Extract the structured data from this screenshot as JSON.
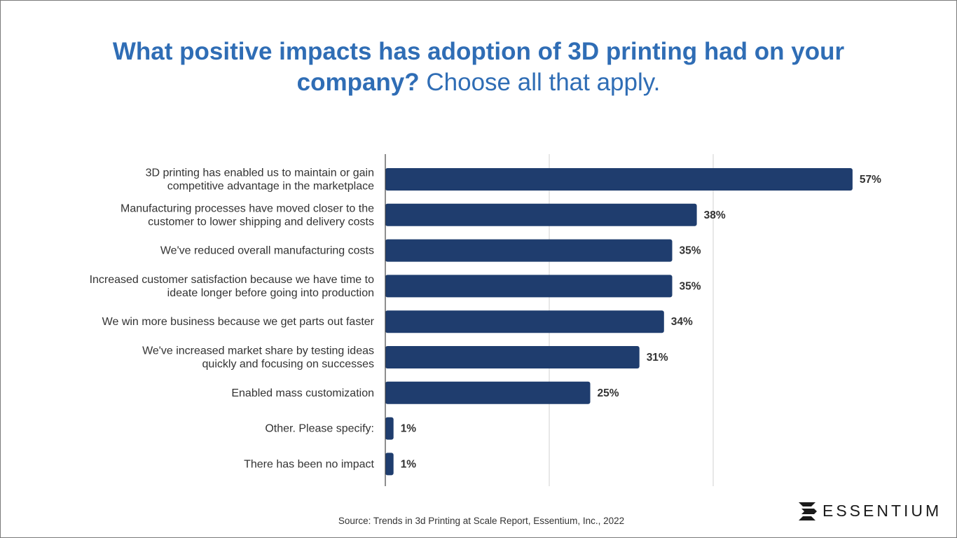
{
  "title": {
    "bold_part_line1": "What positive impacts has adoption of 3D printing had on your",
    "bold_part_line2": "company?",
    "light_part": " Choose all that apply."
  },
  "chart_data": {
    "type": "bar",
    "orientation": "horizontal",
    "categories": [
      [
        "3D printing has enabled us to maintain or gain",
        "competitive advantage in the marketplace"
      ],
      [
        "Manufacturing processes have moved closer to the",
        "customer to lower shipping and delivery costs"
      ],
      [
        "We've reduced overall manufacturing costs"
      ],
      [
        "Increased customer satisfaction because we have time to",
        "ideate longer before going into production"
      ],
      [
        "We win more business because we get parts out faster"
      ],
      [
        "We've increased market share by testing ideas",
        "quickly and focusing on successes"
      ],
      [
        "Enabled mass customization"
      ],
      [
        "Other. Please specify:"
      ],
      [
        "There has been no impact"
      ]
    ],
    "values": [
      57,
      38,
      35,
      35,
      34,
      31,
      25,
      1,
      1
    ],
    "data_labels": [
      "57%",
      "38%",
      "35%",
      "35%",
      "34%",
      "31%",
      "25%",
      "1%",
      "1%"
    ],
    "xlim": [
      0,
      60
    ],
    "gridlines": [
      0,
      20,
      40
    ],
    "grid": true,
    "bar_color": "#1f3d6e"
  },
  "source": "Source: Trends in 3d Printing at Scale Report, Essentium, Inc., 2022",
  "logo": {
    "text": "ESSENTIUM"
  },
  "colors": {
    "title": "#2f6db5",
    "bar": "#1f3d6e",
    "grid": "#d0d0d0",
    "text": "#333333"
  }
}
